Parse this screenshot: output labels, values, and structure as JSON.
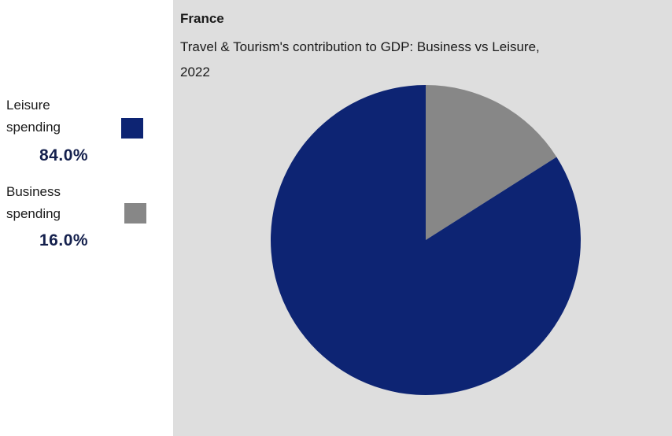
{
  "chart_data": {
    "type": "pie",
    "title": "France",
    "subtitle": "Travel & Tourism's contribution to GDP: Business vs Leisure, 2022",
    "slices": [
      {
        "label": "Leisure spending",
        "value": 84.0,
        "display": "84.0%",
        "color": "#0d2473"
      },
      {
        "label": "Business spending",
        "value": 16.0,
        "display": "16.0%",
        "color": "#878787"
      }
    ],
    "start_angle_deg": 0,
    "direction": "clockwise",
    "first_slice_drawn": "Business spending",
    "legend_position": "left"
  },
  "colors": {
    "panel_background": "#dedede",
    "leisure": "#0d2473",
    "business": "#878787"
  }
}
